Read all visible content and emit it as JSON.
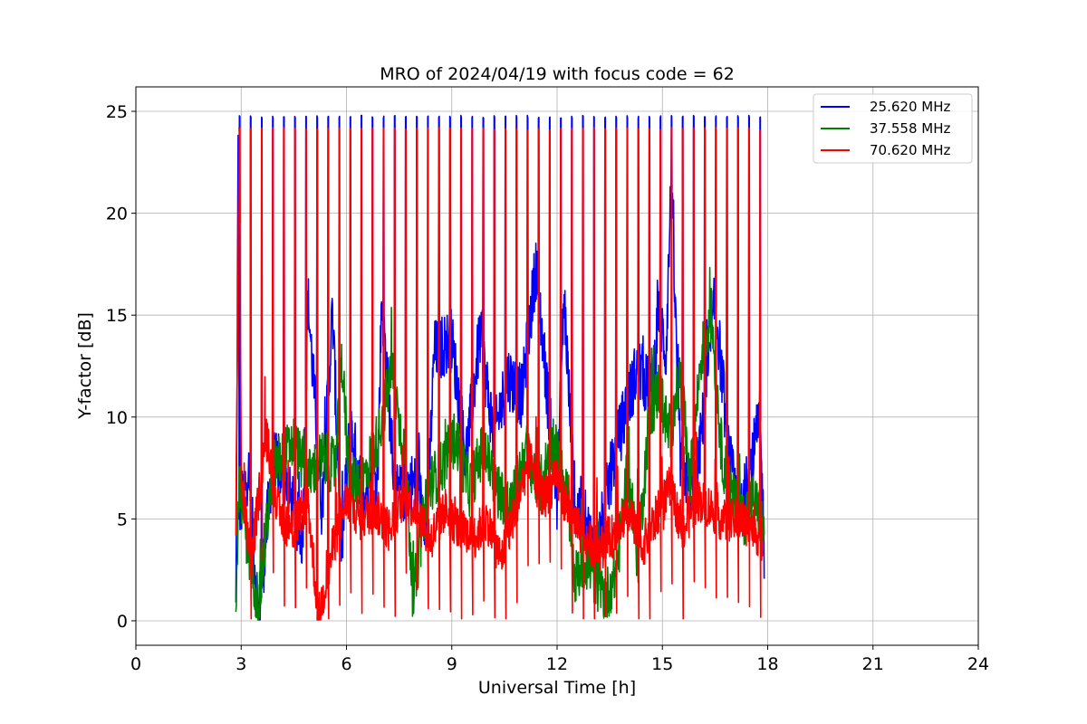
{
  "chart_data": {
    "type": "line",
    "title": "MRO of 2024/04/19 with focus code = 62",
    "xlabel": "Universal Time [h]",
    "ylabel": "Y-factor [dB]",
    "xlim": [
      0,
      24
    ],
    "ylim": [
      -1.2,
      26.2
    ],
    "x_ticks": [
      "0",
      "3",
      "6",
      "9",
      "12",
      "15",
      "18",
      "21",
      "24"
    ],
    "y_ticks": [
      "0",
      "5",
      "10",
      "15",
      "20",
      "25"
    ],
    "grid": true,
    "legend_position": "top-right",
    "series": [
      {
        "name": "25.620 MHz",
        "color": "#0000ff",
        "x": [
          2.85,
          2.92,
          2.95,
          3.0,
          3.2,
          3.5,
          3.9,
          4.3,
          4.75,
          4.9,
          5.3,
          5.6,
          5.86,
          6.1,
          6.5,
          6.9,
          7.0,
          7.4,
          7.9,
          8.3,
          8.5,
          9.0,
          9.4,
          9.8,
          10.2,
          10.6,
          11.0,
          11.4,
          11.78,
          12.0,
          12.2,
          12.5,
          12.7,
          13.1,
          13.5,
          13.9,
          14.3,
          14.7,
          14.9,
          15.1,
          15.25,
          15.5,
          15.9,
          16.3,
          16.5,
          16.9,
          17.2,
          17.5,
          17.78,
          17.9
        ],
        "y": [
          0.4,
          24.8,
          5.0,
          5.5,
          7.5,
          0.1,
          8.0,
          6.5,
          4.0,
          15.8,
          5.5,
          15.1,
          3.5,
          9.5,
          6.0,
          7.5,
          16.0,
          6.0,
          6.8,
          5.0,
          13.2,
          13.8,
          8.0,
          14.0,
          9.0,
          12.0,
          11.0,
          17.5,
          10.0,
          6.0,
          16.0,
          5.5,
          5.5,
          3.0,
          7.0,
          10.0,
          12.5,
          11.0,
          15.5,
          13.0,
          21.5,
          8.0,
          6.0,
          12.0,
          15.8,
          8.0,
          5.0,
          7.5,
          9.8,
          3.5
        ]
      },
      {
        "name": "37.558 MHz",
        "color": "#008000",
        "x": [
          2.85,
          2.95,
          3.2,
          3.5,
          3.9,
          4.2,
          4.5,
          4.9,
          5.3,
          5.7,
          5.86,
          6.1,
          6.5,
          6.9,
          7.3,
          7.7,
          7.9,
          8.3,
          8.7,
          9.1,
          9.5,
          9.9,
          10.3,
          10.7,
          11.1,
          11.5,
          11.9,
          12.3,
          12.5,
          12.8,
          13.1,
          13.4,
          13.7,
          14.0,
          14.3,
          14.6,
          14.9,
          15.2,
          15.5,
          15.8,
          16.1,
          16.4,
          16.7,
          17.0,
          17.3,
          17.6,
          17.9
        ],
        "y": [
          1.4,
          7.0,
          3.5,
          0.8,
          7.5,
          8.0,
          8.8,
          7.0,
          8.0,
          7.5,
          13.0,
          6.5,
          7.0,
          9.0,
          12.3,
          7.5,
          1.0,
          6.5,
          7.5,
          9.0,
          6.5,
          8.5,
          6.5,
          5.5,
          8.5,
          6.5,
          8.8,
          6.0,
          2.0,
          3.0,
          2.0,
          1.2,
          2.5,
          7.5,
          3.0,
          9.5,
          11.5,
          9.0,
          12.0,
          7.0,
          13.0,
          15.0,
          8.0,
          6.0,
          5.0,
          6.0,
          4.5
        ]
      },
      {
        "name": "70.620 MHz",
        "color": "#ff0000",
        "x": [
          2.85,
          2.95,
          3.0,
          3.3,
          3.7,
          4.1,
          4.5,
          4.9,
          5.2,
          5.6,
          6.0,
          6.4,
          6.8,
          7.2,
          7.6,
          8.0,
          8.4,
          8.8,
          9.2,
          9.6,
          10.0,
          10.4,
          10.8,
          11.2,
          11.6,
          12.0,
          12.4,
          12.8,
          13.2,
          13.6,
          14.0,
          14.4,
          14.8,
          15.2,
          15.6,
          16.0,
          16.4,
          16.8,
          17.2,
          17.6,
          17.85
        ],
        "y": [
          4.8,
          24.2,
          6.5,
          3.0,
          9.2,
          5.0,
          4.5,
          6.0,
          0.1,
          3.5,
          6.0,
          5.0,
          5.5,
          4.5,
          6.0,
          5.5,
          4.0,
          5.5,
          4.5,
          4.0,
          5.0,
          3.0,
          5.5,
          8.0,
          6.0,
          7.0,
          5.0,
          4.0,
          3.5,
          4.2,
          5.5,
          3.5,
          5.0,
          6.5,
          4.5,
          6.0,
          5.5,
          4.8,
          5.0,
          4.5,
          4.0
        ]
      }
    ],
    "calibration_pulses": {
      "start_h": 2.95,
      "end_h": 17.78,
      "count": 48,
      "peak_blue": 24.8,
      "peak_red": 24.2,
      "baseline": 5
    }
  }
}
